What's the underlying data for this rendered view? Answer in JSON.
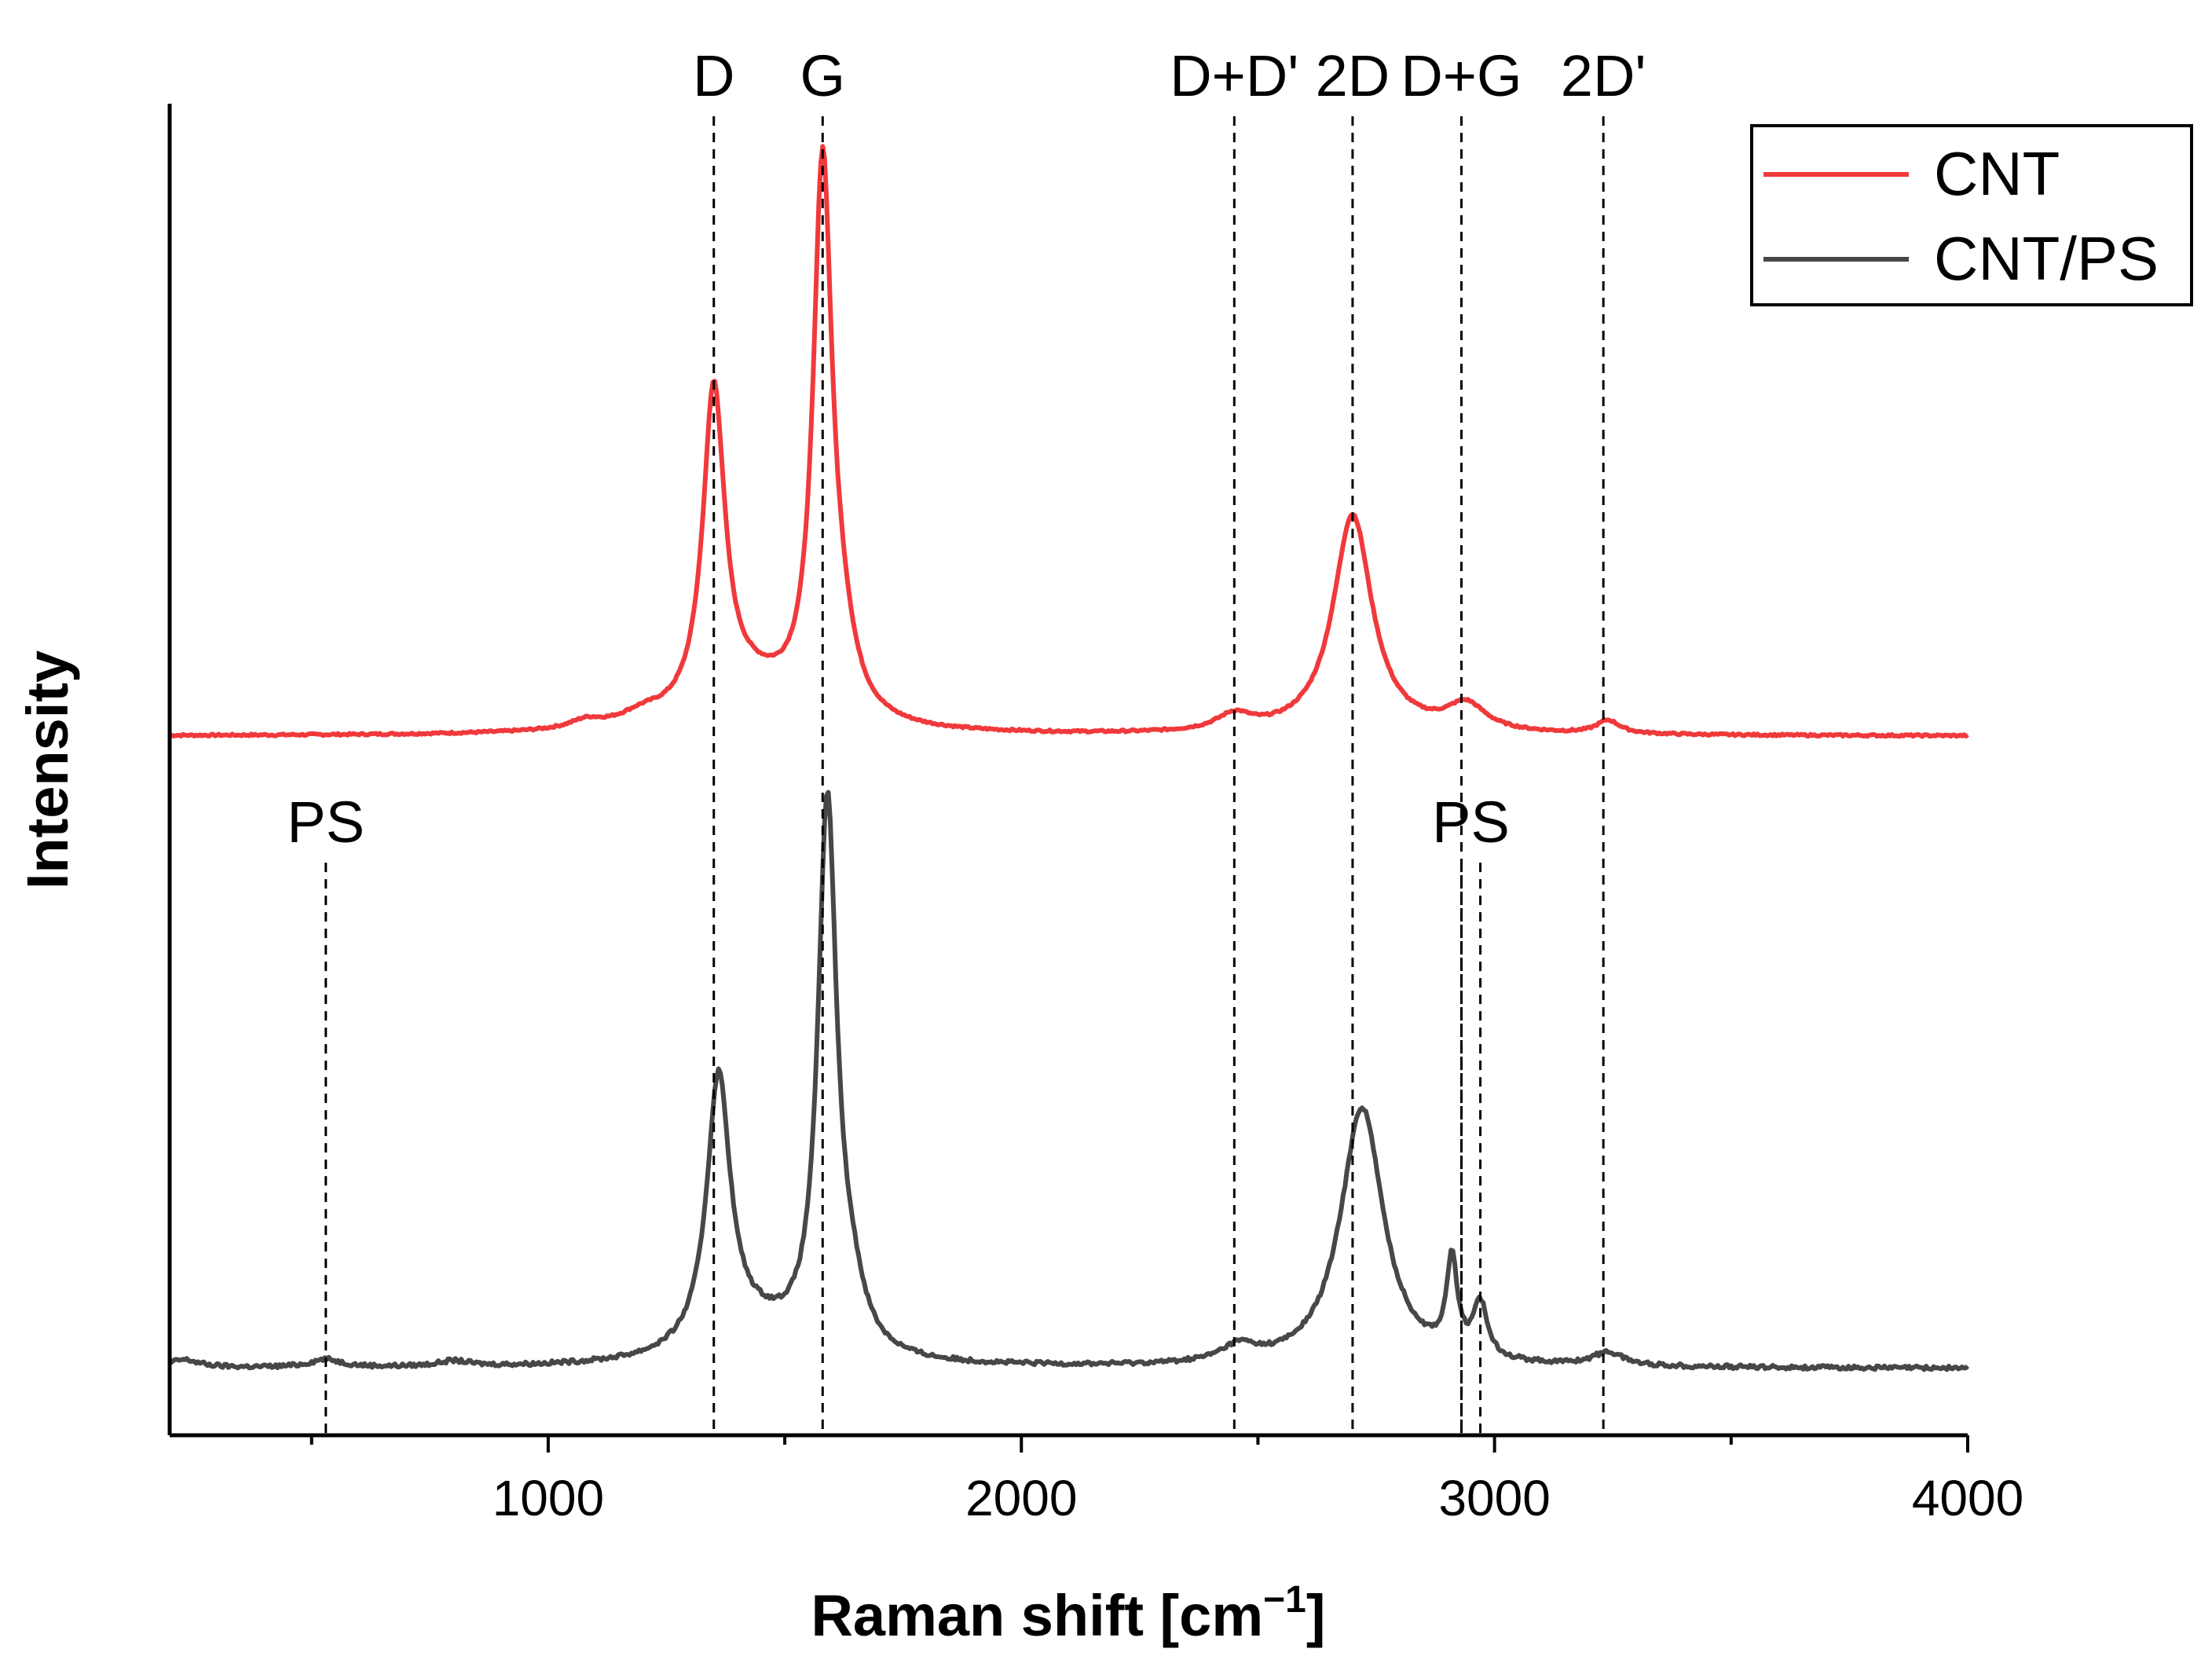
{
  "chart_data": {
    "type": "line",
    "title": "",
    "xlabel": "Raman shift [cm",
    "xlabel_sup": "−1",
    "xlabel_close": "]",
    "ylabel": "Intensity",
    "xlim": [
      200,
      4000
    ],
    "ylim": [
      0,
      100
    ],
    "x_ticks": [
      1000,
      2000,
      3000,
      4000
    ],
    "x_minor_step": 500,
    "grid": false,
    "legend_position": "top-right",
    "series": [
      {
        "name": "CNT",
        "color": "#f0393b",
        "baseline": 52.5,
        "noise": 0.15,
        "peaks": [
          {
            "x": 1080,
            "h": 0.6,
            "w": 40
          },
          {
            "x": 1200,
            "h": 0.8,
            "w": 60
          },
          {
            "x": 1350,
            "h": 24.0,
            "w": 28
          },
          {
            "x": 1430,
            "h": 3.0,
            "w": 120
          },
          {
            "x": 1580,
            "h": 41.0,
            "w": 24
          },
          {
            "x": 1620,
            "h": 4.0,
            "w": 35
          },
          {
            "x": 2450,
            "h": 1.2,
            "w": 45
          },
          {
            "x": 2700,
            "h": 16.5,
            "w": 50
          },
          {
            "x": 2940,
            "h": 2.0,
            "w": 50
          },
          {
            "x": 3240,
            "h": 1.0,
            "w": 30
          }
        ]
      },
      {
        "name": "CNT/PS",
        "color": "#474747",
        "baseline": 5.0,
        "noise": 0.3,
        "peaks": [
          {
            "x": 230,
            "h": 0.6,
            "w": 40
          },
          {
            "x": 530,
            "h": 0.6,
            "w": 40
          },
          {
            "x": 800,
            "h": 0.4,
            "w": 40
          },
          {
            "x": 1360,
            "h": 20.0,
            "w": 30
          },
          {
            "x": 1430,
            "h": 2.5,
            "w": 120
          },
          {
            "x": 1590,
            "h": 41.0,
            "w": 24
          },
          {
            "x": 1640,
            "h": 3.5,
            "w": 35
          },
          {
            "x": 2460,
            "h": 1.2,
            "w": 45
          },
          {
            "x": 2720,
            "h": 19.5,
            "w": 55
          },
          {
            "x": 2910,
            "h": 7.0,
            "w": 14
          },
          {
            "x": 2970,
            "h": 4.0,
            "w": 18
          },
          {
            "x": 3240,
            "h": 1.0,
            "w": 40
          }
        ]
      }
    ],
    "reference_lines": [
      {
        "label": "D",
        "x": 1350,
        "y_top": 100,
        "label_row": "top"
      },
      {
        "label": "G",
        "x": 1580,
        "y_top": 100,
        "label_row": "top"
      },
      {
        "label": "D+D'",
        "x": 2450,
        "y_top": 100,
        "label_row": "top"
      },
      {
        "label": "2D",
        "x": 2700,
        "y_top": 100,
        "label_row": "top"
      },
      {
        "label": "D+G",
        "x": 2930,
        "y_top": 100,
        "label_row": "top"
      },
      {
        "label": "2D'",
        "x": 3230,
        "y_top": 100,
        "label_row": "top"
      }
    ],
    "ps_markers": [
      {
        "label": "PS",
        "lines": [
          530
        ],
        "y_top": 43
      },
      {
        "label": "PS",
        "lines": [
          2930,
          2970
        ],
        "y_top": 43
      }
    ]
  }
}
